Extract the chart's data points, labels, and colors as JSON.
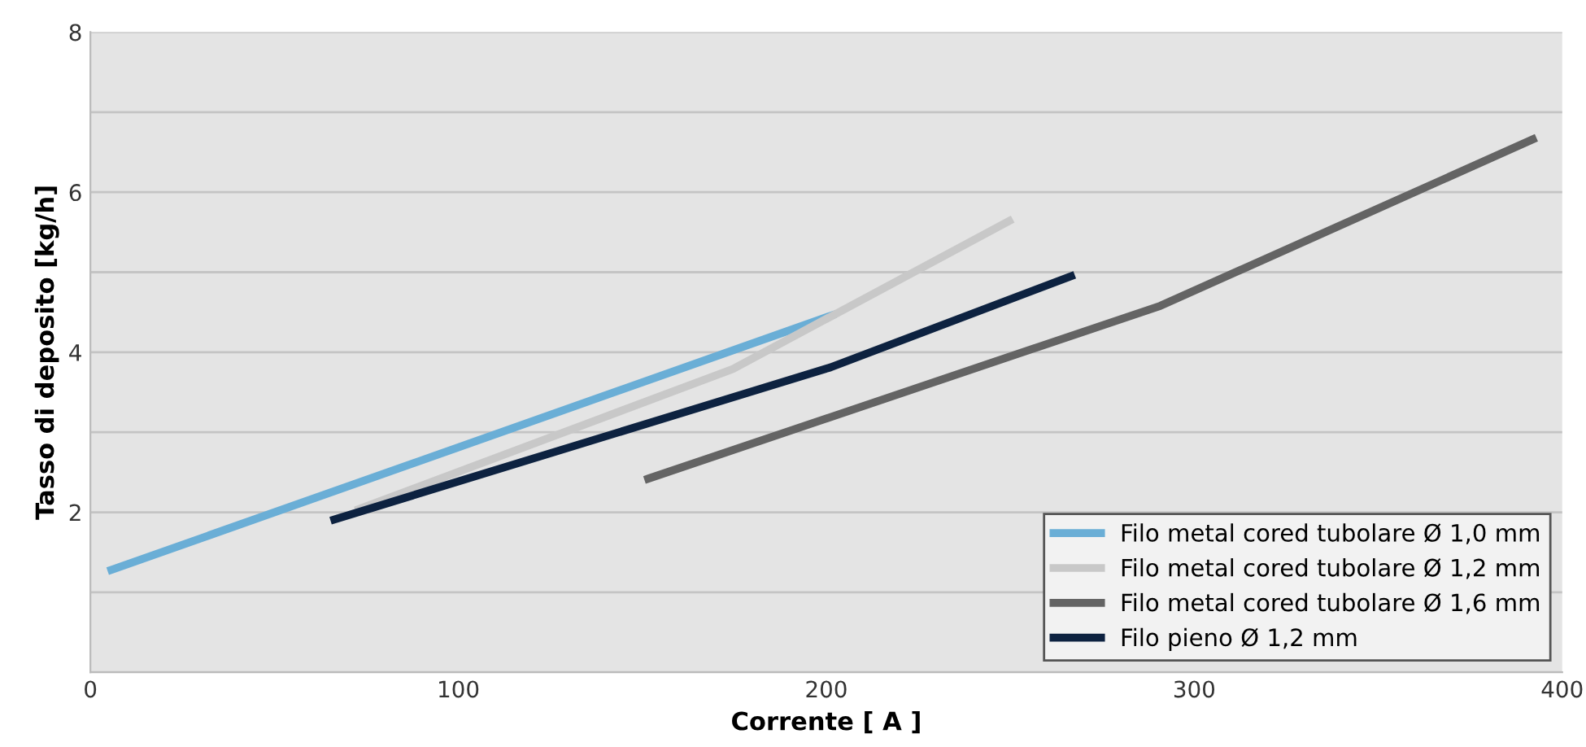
{
  "chart_data": {
    "type": "line",
    "xlabel": "Corrente [ A ]",
    "ylabel": "Tasso di deposito [kg/h]",
    "xlim": [
      0,
      400
    ],
    "xticks": [
      0,
      100,
      200,
      300,
      400
    ],
    "ylim": [
      0,
      8
    ],
    "yticks": [
      {
        "value": 0,
        "label": null
      },
      {
        "value": 1,
        "label": null
      },
      2,
      {
        "value": 3,
        "label": null
      },
      4,
      {
        "value": 5,
        "label": null
      },
      6,
      {
        "value": 7,
        "label": null
      },
      8
    ],
    "grid": "y",
    "legend": "bottom right",
    "marker": "none",
    "line_style": "solid",
    "series": [
      {
        "name": "Filo metal cored tubolare Ø 1,0 mm",
        "color": "#6aaed6",
        "x": [
          5.7,
          201.5
        ],
        "values": [
          1.28,
          4.46
        ]
      },
      {
        "name": "Filo metal cored tubolare Ø 1,2 mm",
        "color": "#c8c8c8",
        "x": [
          73,
          174.6,
          249.7
        ],
        "values": [
          2.04,
          3.79,
          5.64
        ]
      },
      {
        "name": "Filo metal cored tubolare Ø 1,6 mm",
        "color": "#646464",
        "x": [
          151.6,
          290.8,
          392
        ],
        "values": [
          2.42,
          4.58,
          6.66
        ]
      },
      {
        "name": "Filo pieno Ø 1,2 mm",
        "color": "#0d2240",
        "x": [
          66.3,
          201.1,
          266.5
        ],
        "values": [
          1.91,
          3.81,
          4.95
        ]
      }
    ]
  }
}
